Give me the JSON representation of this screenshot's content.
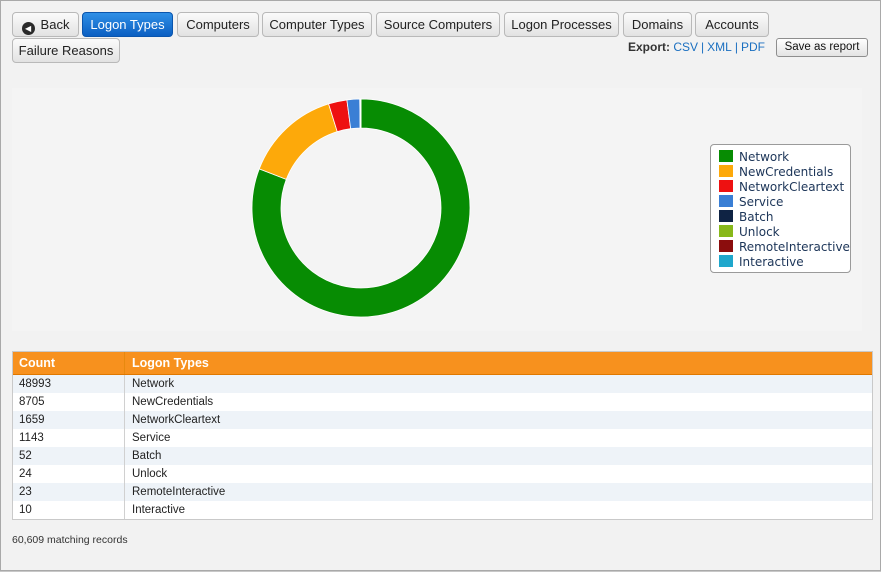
{
  "toolbar": {
    "back_label": "Back",
    "tabs": [
      {
        "label": "Logon Types",
        "active": true
      },
      {
        "label": "Computers",
        "active": false
      },
      {
        "label": "Computer Types",
        "active": false
      },
      {
        "label": "Source Computers",
        "active": false
      },
      {
        "label": "Logon Processes",
        "active": false
      },
      {
        "label": "Domains",
        "active": false
      },
      {
        "label": "Accounts",
        "active": false
      },
      {
        "label": "Failure Reasons",
        "active": false
      }
    ]
  },
  "export": {
    "label": "Export:",
    "csv": "CSV",
    "xml": "XML",
    "pdf": "PDF",
    "separator": "|"
  },
  "save_report_label": "Save as report",
  "chart_data": {
    "type": "pie",
    "donut": true,
    "categories": [
      "Network",
      "NewCredentials",
      "NetworkCleartext",
      "Service",
      "Batch",
      "Unlock",
      "RemoteInteractive",
      "Interactive"
    ],
    "values": [
      48993,
      8705,
      1659,
      1143,
      52,
      24,
      23,
      10
    ],
    "colors": [
      "#078c03",
      "#fda90a",
      "#ee1111",
      "#3a7fd5",
      "#0f2344",
      "#88b81a",
      "#8b0d0d",
      "#1fa7cc"
    ],
    "legend_position": "right"
  },
  "table": {
    "headers": [
      "Count",
      "Logon Types"
    ],
    "rows": [
      [
        "48993",
        "Network"
      ],
      [
        "8705",
        "NewCredentials"
      ],
      [
        "1659",
        "NetworkCleartext"
      ],
      [
        "1143",
        "Service"
      ],
      [
        "52",
        "Batch"
      ],
      [
        "24",
        "Unlock"
      ],
      [
        "23",
        "RemoteInteractive"
      ],
      [
        "10",
        "Interactive"
      ]
    ]
  },
  "footer": "60,609 matching records"
}
